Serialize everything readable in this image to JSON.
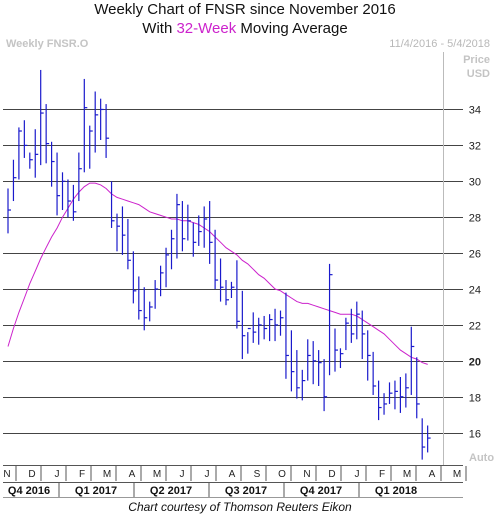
{
  "header": {
    "title_line1": "Weekly Chart of FNSR since November 2016",
    "title_line2_pre": "With ",
    "title_line2_accent": "32-Week",
    "title_line2_post": " Moving Average",
    "symbol": "Weekly FNSR.O",
    "date_range": "11/4/2016 - 5/4/2018",
    "price_label": "Price",
    "currency_label": "USD",
    "auto_label": "Auto"
  },
  "footer": {
    "credit": "Chart courtesy of Thomson Reuters Eikon"
  },
  "colors": {
    "bars": "#1a1acc",
    "moving_average": "#cc22cc",
    "accent": "#cc22cc"
  },
  "chart_data": {
    "type": "ohlc",
    "title": "Weekly Chart of FNSR since November 2016",
    "subtitle": "With 32-Week Moving Average",
    "ylabel": "Price USD",
    "ylim": [
      14.2,
      37.2
    ],
    "y_ticks": [
      16,
      18,
      20,
      22,
      24,
      26,
      28,
      30,
      32,
      34
    ],
    "y_tick_highlight": 20,
    "grid": true,
    "x_month_labels": [
      "N",
      "D",
      "J",
      "F",
      "M",
      "A",
      "M",
      "J",
      "J",
      "A",
      "S",
      "O",
      "N",
      "D",
      "J",
      "F",
      "M",
      "A",
      "M"
    ],
    "x_quarter_labels": [
      "Q4 2016",
      "Q1 2017",
      "Q2 2017",
      "Q3 2017",
      "Q4 2017",
      "Q1 2018"
    ],
    "series": [
      {
        "name": "FNSR.O",
        "high": [
          29.6,
          31.2,
          33.0,
          33.4,
          31.6,
          32.9,
          36.2,
          34.3,
          32.2,
          31.6,
          30.5,
          30.1,
          29.8,
          31.6,
          35.7,
          33.1,
          35.0,
          34.6,
          34.3,
          30.0,
          28.2,
          28.6,
          27.9,
          26.1,
          24.7,
          24.1,
          23.3,
          24.5,
          25.3,
          26.3,
          27.3,
          29.3,
          28.9,
          28.7,
          27.7,
          28.1,
          28.6,
          28.9,
          27.3,
          25.7,
          24.5,
          24.4,
          25.6,
          23.9,
          21.6,
          22.7,
          22.4,
          22.5,
          22.6,
          22.9,
          22.8,
          23.8,
          21.7,
          20.6,
          19.5,
          21.2,
          21.1,
          20.6,
          20.1,
          25.4,
          21.8,
          20.7,
          22.4,
          22.9,
          23.3,
          22.8,
          21.7,
          20.5,
          18.9,
          18.2,
          18.8,
          18.9,
          19.1,
          19.3,
          21.9,
          20.2,
          16.8,
          16.4
        ],
        "low": [
          27.1,
          28.9,
          30.1,
          31.3,
          30.7,
          30.2,
          30.9,
          31.0,
          29.7,
          28.1,
          28.4,
          28.0,
          27.8,
          28.9,
          30.5,
          30.7,
          31.6,
          32.3,
          31.3,
          27.4,
          26.1,
          25.9,
          25.1,
          23.2,
          22.3,
          21.7,
          22.2,
          22.9,
          23.6,
          24.1,
          25.1,
          25.7,
          26.1,
          26.7,
          25.8,
          26.4,
          26.3,
          25.4,
          24.0,
          23.3,
          23.1,
          23.5,
          21.8,
          20.1,
          20.4,
          21.0,
          20.9,
          21.2,
          21.1,
          21.1,
          21.4,
          19.0,
          18.3,
          17.9,
          17.8,
          18.9,
          18.7,
          18.6,
          17.2,
          19.2,
          19.4,
          19.6,
          20.6,
          21.0,
          21.2,
          20.1,
          18.9,
          18.1,
          16.7,
          17.0,
          17.6,
          17.3,
          17.1,
          17.4,
          18.1,
          16.8,
          14.5,
          14.9
        ],
        "close": [
          28.4,
          30.2,
          32.8,
          32.0,
          31.2,
          31.5,
          33.8,
          32.1,
          31.1,
          29.2,
          30.0,
          28.9,
          28.3,
          30.7,
          34.1,
          32.8,
          33.7,
          34.0,
          32.4,
          27.8,
          27.5,
          27.0,
          25.6,
          23.9,
          22.8,
          22.4,
          23.0,
          24.0,
          24.9,
          25.9,
          26.8,
          28.7,
          26.8,
          27.8,
          26.6,
          27.2,
          27.9,
          26.6,
          24.5,
          24.1,
          23.4,
          24.1,
          22.2,
          21.4,
          21.8,
          21.6,
          22.0,
          21.8,
          22.3,
          22.0,
          22.4,
          20.3,
          19.4,
          18.5,
          18.9,
          20.3,
          20.0,
          19.9,
          18.0,
          24.8,
          20.6,
          20.4,
          22.1,
          21.5,
          22.6,
          21.5,
          20.3,
          18.6,
          17.4,
          17.6,
          18.2,
          18.3,
          18.0,
          18.5,
          20.8,
          17.6,
          15.2,
          15.7
        ]
      },
      {
        "name": "32-Week Moving Average",
        "values": [
          20.8,
          21.8,
          22.7,
          23.5,
          24.3,
          25.0,
          25.7,
          26.3,
          26.9,
          27.4,
          28.0,
          28.5,
          29.0,
          29.4,
          29.7,
          29.9,
          29.9,
          29.8,
          29.6,
          29.3,
          29.1,
          29.0,
          28.9,
          28.8,
          28.7,
          28.5,
          28.3,
          28.2,
          28.1,
          28.0,
          27.9,
          27.9,
          27.8,
          27.8,
          27.7,
          27.6,
          27.4,
          27.2,
          26.9,
          26.6,
          26.3,
          26.1,
          25.9,
          25.6,
          25.4,
          25.1,
          24.8,
          24.6,
          24.3,
          24.0,
          23.9,
          23.7,
          23.5,
          23.3,
          23.2,
          23.2,
          23.1,
          23.0,
          22.9,
          22.8,
          22.7,
          22.6,
          22.6,
          22.6,
          22.5,
          22.3,
          22.1,
          21.9,
          21.7,
          21.5,
          21.2,
          20.9,
          20.6,
          20.4,
          20.2,
          20.1,
          19.9,
          19.8
        ]
      }
    ]
  }
}
